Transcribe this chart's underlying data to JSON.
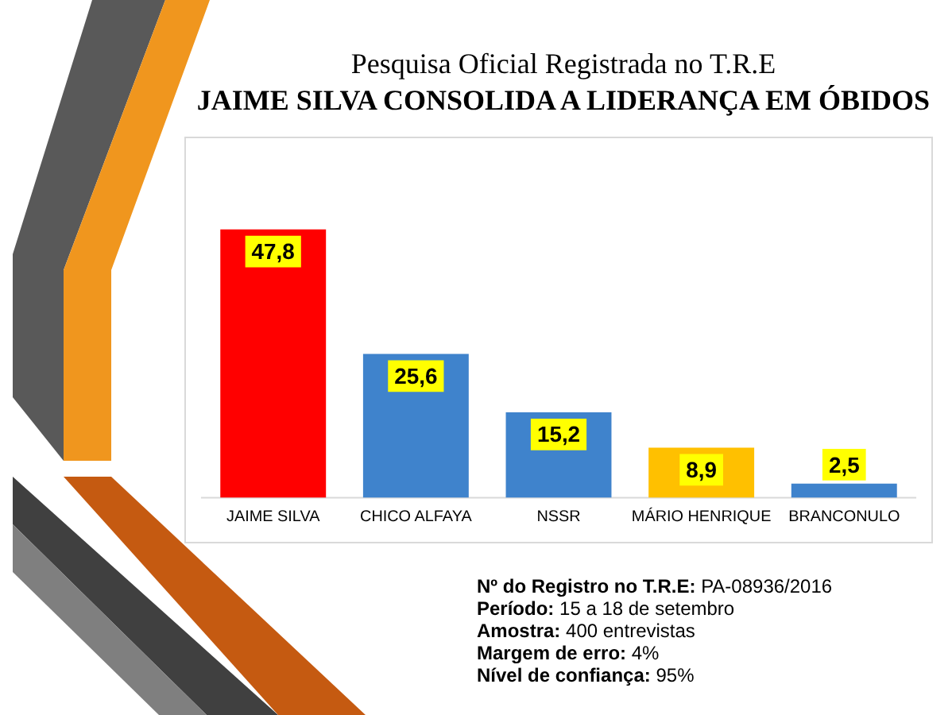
{
  "chart_data": {
    "type": "bar",
    "title": "Pesquisa Oficial Registrada no T.R.E",
    "subtitle": "JAIME SILVA CONSOLIDA A LIDERANÇA EM ÓBIDOS",
    "categories": [
      "JAIME SILVA",
      "CHICO ALFAYA",
      "NSSR",
      "MÁRIO HENRIQUE",
      "BRANCONULO"
    ],
    "values": [
      47.8,
      25.6,
      15.2,
      8.9,
      2.5
    ],
    "colors": [
      "#ff0000",
      "#3f83cc",
      "#3f83cc",
      "#ffc000",
      "#3f83cc"
    ],
    "value_labels": [
      "47,8",
      "25,6",
      "15,2",
      "8,9",
      "2,5"
    ],
    "annotations": [
      "Nº do Registro no T.R.E: PA-08936/2016",
      "Período: 15 a 18 de setembro",
      "Amostra: 400 entrevistas",
      "Margem de erro: 4%",
      "Nível de confiança: 95%"
    ],
    "grid": false,
    "legend": false
  }
}
